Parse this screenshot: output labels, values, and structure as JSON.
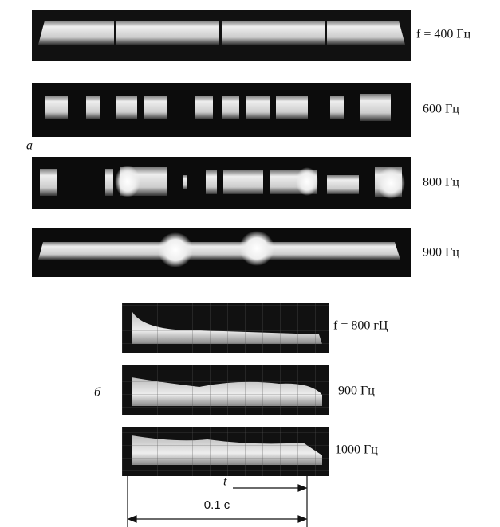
{
  "panel_a": {
    "label": "a",
    "strips": [
      {
        "label": "f = 400 Гц"
      },
      {
        "label": "600 Гц"
      },
      {
        "label": "800 Гц"
      },
      {
        "label": "900 Гц"
      }
    ]
  },
  "panel_b": {
    "label": "б",
    "strips": [
      {
        "label": "f = 800 гЦ"
      },
      {
        "label": "900 Гц"
      },
      {
        "label": "1000 Гц"
      }
    ]
  },
  "time_axis": {
    "symbol": "t",
    "duration": "0.1 с"
  }
}
